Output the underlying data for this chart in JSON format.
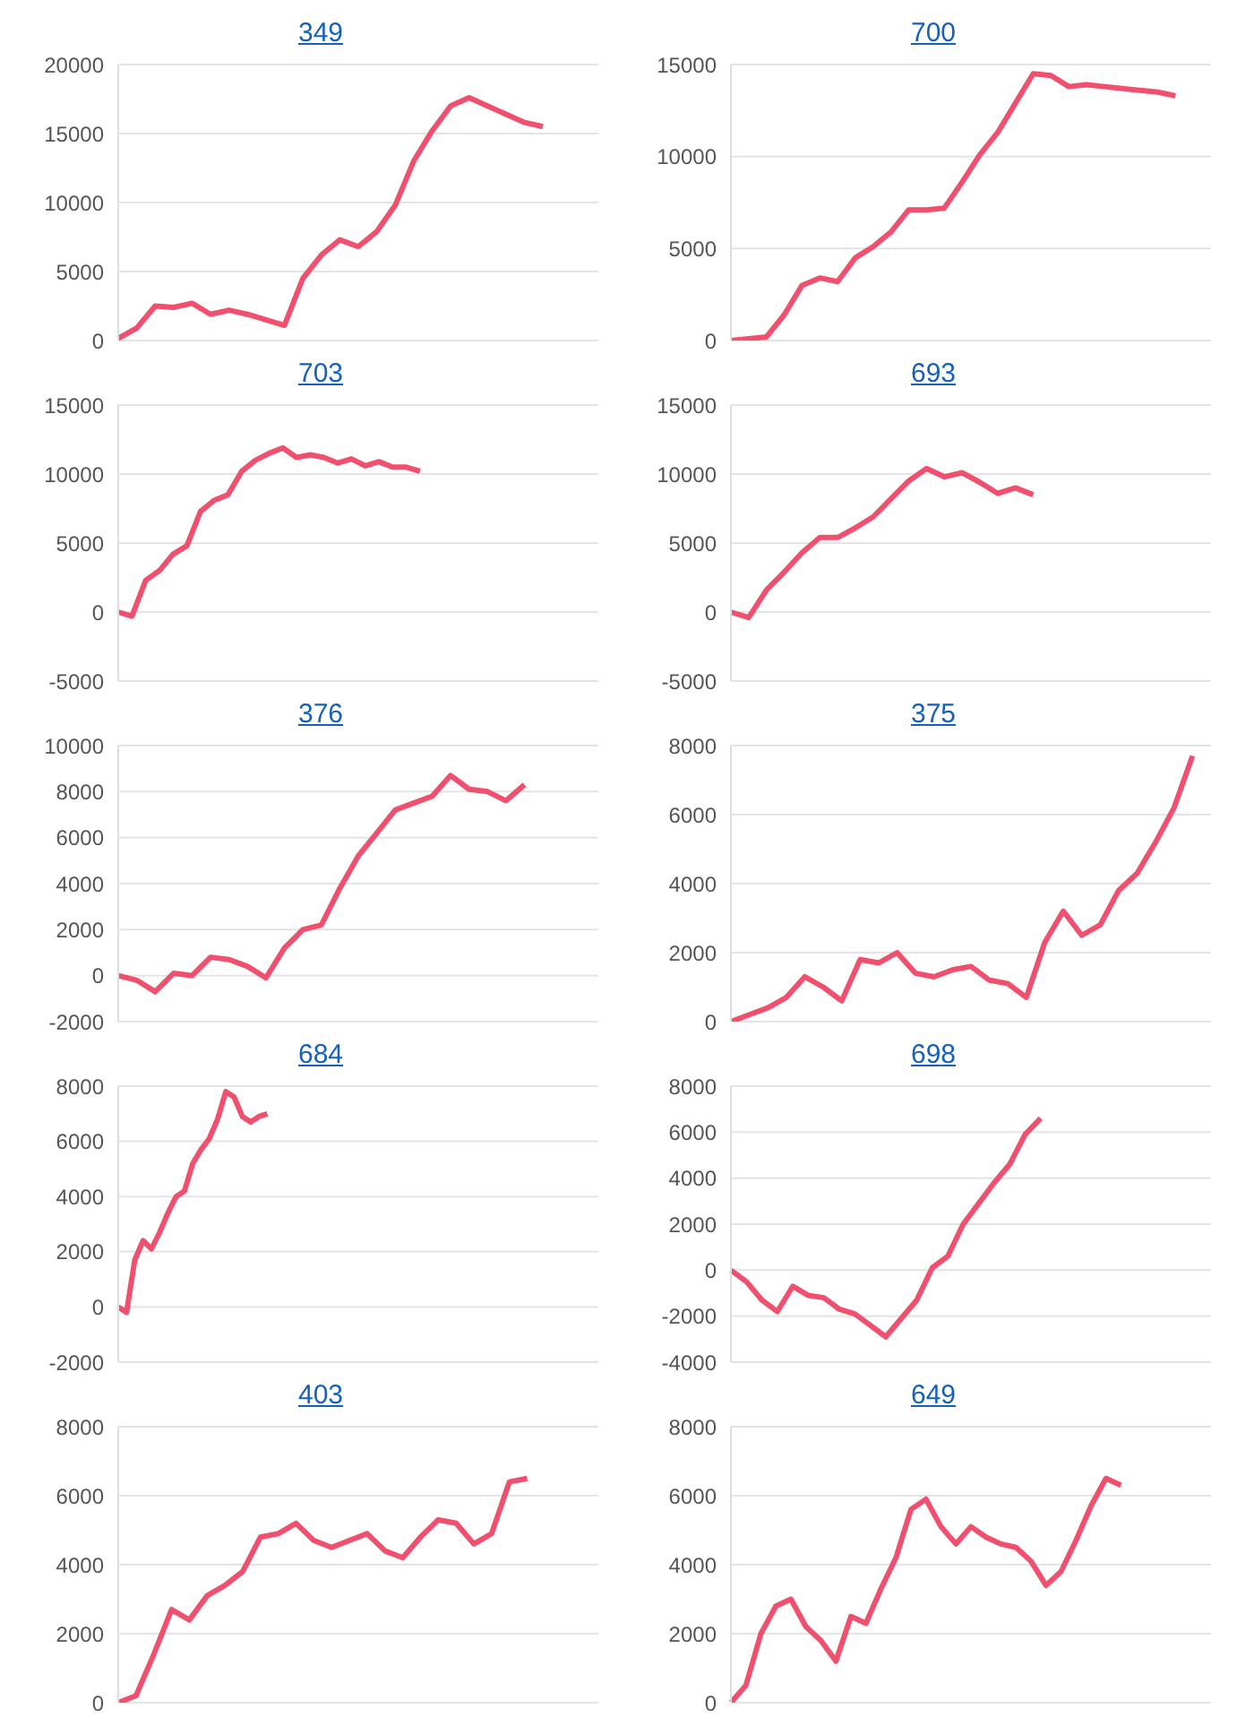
{
  "chart_data": [
    {
      "type": "line",
      "title": "349",
      "categories": [
        null,
        null,
        null,
        null,
        null,
        null,
        null,
        null,
        null,
        null,
        null,
        null,
        null,
        null,
        null,
        null,
        null,
        null,
        null,
        null,
        null,
        null,
        null,
        null,
        null,
        null,
        null
      ],
      "values": [
        150,
        900,
        2500,
        2400,
        2700,
        1900,
        2200,
        1900,
        1500,
        1100,
        4500,
        6200,
        7300,
        6800,
        7900,
        9800,
        13000,
        15200,
        17000,
        17600,
        17000,
        16400,
        15800,
        15500,
        null,
        null,
        null
      ],
      "color": "#f0506e",
      "ylim": [
        0,
        20000
      ],
      "yticks": [
        0,
        5000,
        10000,
        15000,
        20000
      ],
      "grid": "y",
      "tick_labels": "y",
      "marker": "none",
      "legend": false
    },
    {
      "type": "line",
      "title": "700",
      "categories": [
        null,
        null,
        null,
        null,
        null,
        null,
        null,
        null,
        null,
        null,
        null,
        null,
        null,
        null,
        null,
        null,
        null,
        null,
        null,
        null,
        null,
        null,
        null,
        null,
        null,
        null,
        null,
        null
      ],
      "values": [
        0,
        100,
        200,
        1400,
        3000,
        3400,
        3200,
        4500,
        5100,
        5900,
        7100,
        7100,
        7200,
        8600,
        10100,
        11300,
        12900,
        14500,
        14400,
        13800,
        13900,
        13800,
        13700,
        13600,
        13500,
        13300,
        null,
        null
      ],
      "color": "#f0506e",
      "ylim": [
        0,
        15000
      ],
      "yticks": [
        0,
        5000,
        10000,
        15000
      ],
      "grid": "y",
      "tick_labels": "y",
      "marker": "none",
      "legend": false
    },
    {
      "type": "line",
      "title": "703",
      "categories": [
        null,
        null,
        null,
        null,
        null,
        null,
        null,
        null,
        null,
        null,
        null,
        null,
        null,
        null,
        null,
        null,
        null,
        null,
        null,
        null,
        null,
        null,
        null,
        null,
        null,
        null,
        null,
        null,
        null,
        null,
        null,
        null,
        null,
        null,
        null,
        null
      ],
      "values": [
        0,
        -300,
        2300,
        3000,
        4200,
        4800,
        7300,
        8100,
        8500,
        10200,
        11000,
        11500,
        11900,
        11200,
        11400,
        11200,
        10800,
        11100,
        10600,
        10900,
        10500,
        10500,
        10200,
        null,
        null,
        null,
        null,
        null,
        null,
        null,
        null,
        null,
        null,
        null,
        null,
        null
      ],
      "color": "#f0506e",
      "ylim": [
        -5000,
        15000
      ],
      "yticks": [
        -5000,
        0,
        5000,
        10000,
        15000
      ],
      "grid": "y",
      "tick_labels": "y",
      "marker": "none",
      "legend": false
    },
    {
      "type": "line",
      "title": "693",
      "categories": [
        null,
        null,
        null,
        null,
        null,
        null,
        null,
        null,
        null,
        null,
        null,
        null,
        null,
        null,
        null,
        null,
        null,
        null,
        null,
        null,
        null,
        null,
        null,
        null,
        null,
        null,
        null,
        null
      ],
      "values": [
        0,
        -400,
        1600,
        2900,
        4300,
        5400,
        5400,
        6100,
        6900,
        8200,
        9500,
        10400,
        9800,
        10100,
        9400,
        8600,
        9000,
        8500,
        null,
        null,
        null,
        null,
        null,
        null,
        null,
        null,
        null,
        null
      ],
      "color": "#f0506e",
      "ylim": [
        -5000,
        15000
      ],
      "yticks": [
        -5000,
        0,
        5000,
        10000,
        15000
      ],
      "grid": "y",
      "tick_labels": "y",
      "marker": "none",
      "legend": false
    },
    {
      "type": "line",
      "title": "376",
      "categories": [
        null,
        null,
        null,
        null,
        null,
        null,
        null,
        null,
        null,
        null,
        null,
        null,
        null,
        null,
        null,
        null,
        null,
        null,
        null,
        null,
        null,
        null,
        null,
        null,
        null,
        null,
        null
      ],
      "values": [
        0,
        -200,
        -700,
        100,
        0,
        800,
        700,
        400,
        -100,
        1200,
        2000,
        2200,
        3800,
        5200,
        6200,
        7200,
        7500,
        7800,
        8700,
        8100,
        8000,
        7600,
        8300,
        null,
        null,
        null,
        null
      ],
      "color": "#f0506e",
      "ylim": [
        -2000,
        10000
      ],
      "yticks": [
        -2000,
        0,
        2000,
        4000,
        6000,
        8000,
        10000
      ],
      "grid": "y",
      "tick_labels": "y",
      "marker": "none",
      "legend": false
    },
    {
      "type": "line",
      "title": "375",
      "categories": [
        null,
        null,
        null,
        null,
        null,
        null,
        null,
        null,
        null,
        null,
        null,
        null,
        null,
        null,
        null,
        null,
        null,
        null,
        null,
        null,
        null,
        null,
        null,
        null,
        null,
        null,
        null
      ],
      "values": [
        0,
        200,
        400,
        700,
        1300,
        1000,
        600,
        1800,
        1700,
        2000,
        1400,
        1300,
        1500,
        1600,
        1200,
        1100,
        700,
        2300,
        3200,
        2500,
        2800,
        3800,
        4300,
        5200,
        6200,
        7700,
        null
      ],
      "color": "#f0506e",
      "ylim": [
        0,
        8000
      ],
      "yticks": [
        0,
        2000,
        4000,
        6000,
        8000
      ],
      "grid": "y",
      "tick_labels": "y",
      "marker": "none",
      "legend": false
    },
    {
      "type": "line",
      "title": "684",
      "categories": [
        null,
        null,
        null,
        null,
        null,
        null,
        null,
        null,
        null,
        null,
        null,
        null,
        null,
        null,
        null,
        null,
        null,
        null,
        null,
        null,
        null,
        null,
        null,
        null,
        null,
        null,
        null,
        null,
        null,
        null,
        null,
        null,
        null,
        null,
        null,
        null,
        null,
        null,
        null,
        null,
        null,
        null,
        null,
        null,
        null,
        null,
        null,
        null,
        null,
        null,
        null,
        null,
        null,
        null,
        null,
        null,
        null,
        null,
        null
      ],
      "values": [
        0,
        -200,
        1700,
        2400,
        2100,
        2700,
        3400,
        4000,
        4200,
        5200,
        5700,
        6100,
        6800,
        7800,
        7600,
        6900,
        6700,
        6900,
        7000,
        null,
        null,
        null,
        null,
        null,
        null,
        null,
        null,
        null,
        null,
        null,
        null,
        null,
        null,
        null,
        null,
        null,
        null,
        null,
        null,
        null,
        null,
        null,
        null,
        null,
        null,
        null,
        null,
        null,
        null,
        null,
        null,
        null,
        null,
        null,
        null,
        null,
        null,
        null,
        null
      ],
      "color": "#f0506e",
      "ylim": [
        -2000,
        8000
      ],
      "yticks": [
        -2000,
        0,
        2000,
        4000,
        6000,
        8000
      ],
      "grid": "y",
      "tick_labels": "y",
      "marker": "none",
      "legend": false
    },
    {
      "type": "line",
      "title": "698",
      "categories": [
        null,
        null,
        null,
        null,
        null,
        null,
        null,
        null,
        null,
        null,
        null,
        null,
        null,
        null,
        null,
        null,
        null,
        null,
        null,
        null,
        null,
        null,
        null,
        null,
        null,
        null,
        null,
        null,
        null,
        null,
        null,
        null
      ],
      "values": [
        0,
        -500,
        -1300,
        -1800,
        -700,
        -1100,
        -1200,
        -1700,
        -1900,
        -2400,
        -2900,
        -2100,
        -1300,
        100,
        600,
        2000,
        2900,
        3800,
        4600,
        5900,
        6600,
        null,
        null,
        null,
        null,
        null,
        null,
        null,
        null,
        null,
        null,
        null
      ],
      "color": "#f0506e",
      "ylim": [
        -4000,
        8000
      ],
      "yticks": [
        -4000,
        -2000,
        0,
        2000,
        4000,
        6000,
        8000
      ],
      "grid": "y",
      "tick_labels": "y",
      "marker": "none",
      "legend": false
    },
    {
      "type": "line",
      "title": "403",
      "categories": [
        null,
        null,
        null,
        null,
        null,
        null,
        null,
        null,
        null,
        null,
        null,
        null,
        null,
        null,
        null,
        null,
        null,
        null,
        null,
        null,
        null,
        null,
        null,
        null,
        null,
        null,
        null,
        null
      ],
      "values": [
        0,
        200,
        1400,
        2700,
        2400,
        3100,
        3400,
        3800,
        4800,
        4900,
        5200,
        4700,
        4500,
        4700,
        4900,
        4400,
        4200,
        4800,
        5300,
        5200,
        4600,
        4900,
        6400,
        6500,
        null,
        null,
        null,
        null
      ],
      "color": "#f0506e",
      "ylim": [
        0,
        8000
      ],
      "yticks": [
        0,
        2000,
        4000,
        6000,
        8000
      ],
      "grid": "y",
      "tick_labels": "y",
      "marker": "none",
      "legend": false
    },
    {
      "type": "line",
      "title": "649",
      "categories": [
        null,
        null,
        null,
        null,
        null,
        null,
        null,
        null,
        null,
        null,
        null,
        null,
        null,
        null,
        null,
        null,
        null,
        null,
        null,
        null,
        null,
        null,
        null,
        null,
        null,
        null,
        null,
        null,
        null,
        null,
        null,
        null,
        null
      ],
      "values": [
        0,
        500,
        2000,
        2800,
        3000,
        2200,
        1800,
        1200,
        2500,
        2300,
        3300,
        4200,
        5600,
        5900,
        5100,
        4600,
        5100,
        4800,
        4600,
        4500,
        4100,
        3400,
        3800,
        4700,
        5700,
        6500,
        6300,
        null,
        null,
        null,
        null,
        null,
        null
      ],
      "color": "#f0506e",
      "ylim": [
        0,
        8000
      ],
      "yticks": [
        0,
        2000,
        4000,
        6000,
        8000
      ],
      "grid": "y",
      "tick_labels": "y",
      "marker": "none",
      "legend": false
    }
  ]
}
